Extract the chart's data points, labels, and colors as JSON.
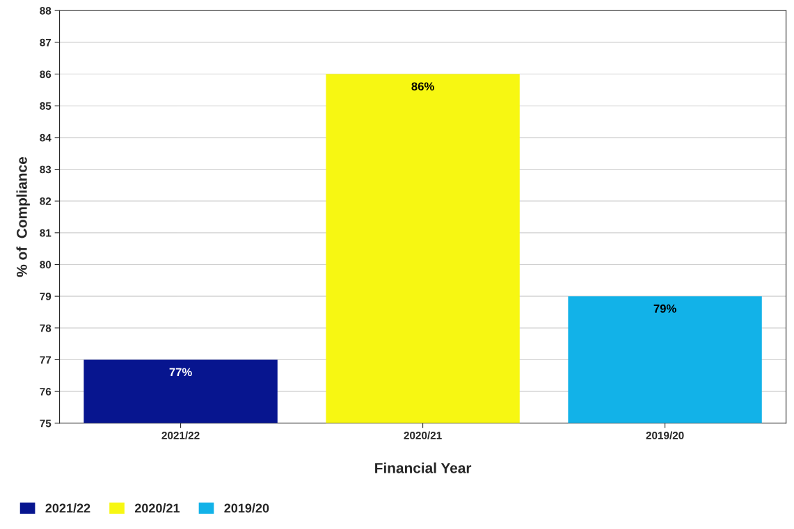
{
  "chart_data": {
    "type": "bar",
    "xlabel": "Financial Year",
    "ylabel": "% of  Compliance",
    "categories": [
      "2021/22",
      "2020/21",
      "2019/20"
    ],
    "series": [
      {
        "name": "2021/22",
        "color": "#07158f",
        "values": [
          77,
          null,
          null
        ],
        "value_labels": [
          "77%",
          null,
          null
        ]
      },
      {
        "name": "2020/21",
        "color": "#f7f712",
        "values": [
          null,
          86,
          null
        ],
        "value_labels": [
          null,
          "86%",
          null
        ]
      },
      {
        "name": "2019/20",
        "color": "#12b2e8",
        "values": [
          null,
          null,
          79
        ],
        "value_labels": [
          null,
          null,
          "79%"
        ]
      }
    ],
    "ylim": [
      75,
      88
    ],
    "yticks": [
      75,
      76,
      77,
      78,
      79,
      80,
      81,
      82,
      83,
      84,
      85,
      86,
      87,
      88
    ],
    "grid": "y",
    "legend": "bottom left"
  }
}
